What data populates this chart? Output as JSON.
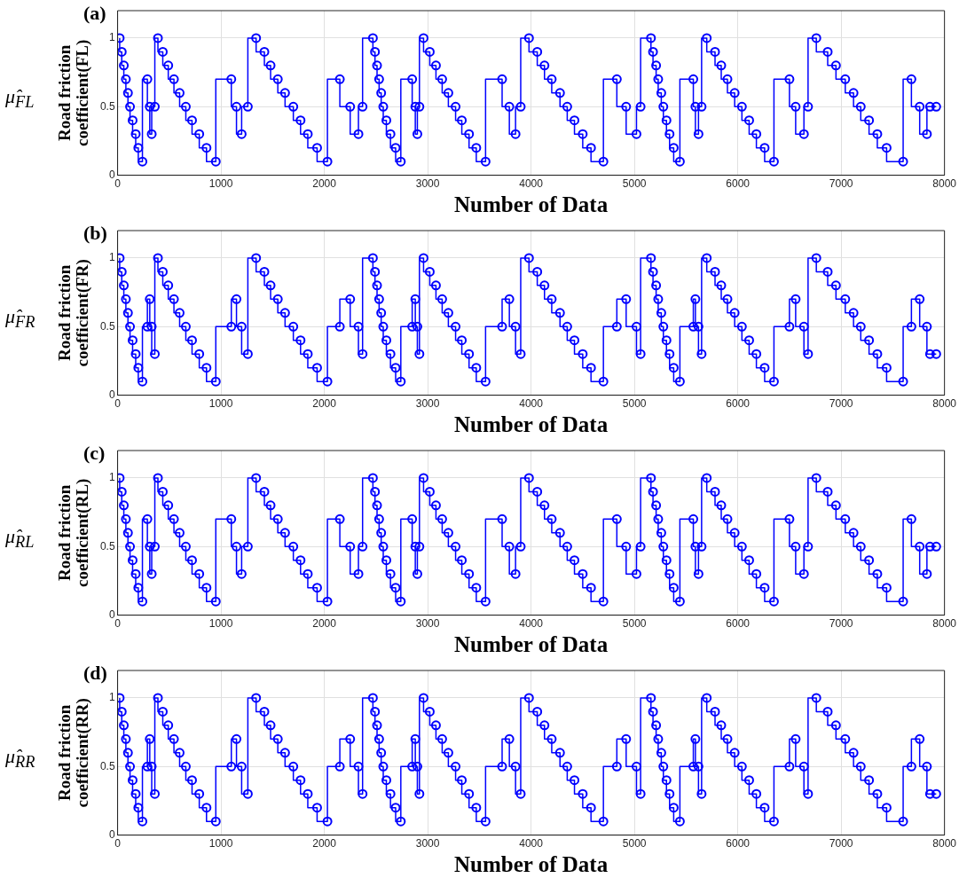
{
  "chart_data": [
    {
      "type": "step",
      "title": "(a)",
      "xlabel": "Number of Data",
      "ylabel": "Road friction coefficient(FL)",
      "annotations": [
        "μ̂$_{FL}$"
      ],
      "xlim": [
        0,
        8000
      ],
      "xticks": [
        0,
        1000,
        2000,
        3000,
        4000,
        5000,
        6000,
        7000,
        8000
      ],
      "ylim": [
        0,
        1.2
      ],
      "yticks": [
        0,
        0.5,
        1
      ],
      "grid": true,
      "legend": false,
      "marker": "circle",
      "line_style": "solid",
      "series": [
        {
          "color": "#0000ff",
          "x": [
            20,
            40,
            60,
            80,
            100,
            120,
            145,
            175,
            200,
            240,
            288,
            311,
            330,
            360,
            390,
            437,
            490,
            545,
            600,
            660,
            720,
            790,
            860,
            950,
            1100,
            1150,
            1200,
            1260,
            1340,
            1420,
            1480,
            1550,
            1620,
            1700,
            1770,
            1840,
            1930,
            2030,
            2150,
            2250,
            2330,
            2370,
            2470,
            2490,
            2510,
            2530,
            2550,
            2570,
            2600,
            2640,
            2690,
            2740,
            2850,
            2880,
            2900,
            2920,
            2960,
            3020,
            3080,
            3140,
            3200,
            3270,
            3330,
            3400,
            3470,
            3560,
            3720,
            3790,
            3850,
            3900,
            3980,
            4060,
            4130,
            4200,
            4280,
            4350,
            4420,
            4500,
            4580,
            4700,
            4830,
            4920,
            5020,
            5060,
            5160,
            5180,
            5210,
            5230,
            5260,
            5280,
            5310,
            5340,
            5380,
            5440,
            5570,
            5590,
            5620,
            5650,
            5700,
            5780,
            5840,
            5900,
            5970,
            6040,
            6110,
            6180,
            6260,
            6350,
            6500,
            6560,
            6640,
            6680,
            6760,
            6870,
            6950,
            7040,
            7120,
            7190,
            7270,
            7350,
            7440,
            7600,
            7680,
            7760,
            7830,
            7860,
            7920
          ],
          "values": [
            1,
            0.9,
            0.8,
            0.7,
            0.6,
            0.5,
            0.4,
            0.3,
            0.2,
            0.1,
            0.7,
            0.5,
            0.3,
            0.5,
            1,
            0.9,
            0.8,
            0.7,
            0.6,
            0.5,
            0.4,
            0.3,
            0.2,
            0.1,
            0.7,
            0.5,
            0.3,
            0.5,
            1,
            0.9,
            0.8,
            0.7,
            0.6,
            0.5,
            0.4,
            0.3,
            0.2,
            0.1,
            0.7,
            0.5,
            0.3,
            0.5,
            1,
            0.9,
            0.8,
            0.7,
            0.6,
            0.5,
            0.4,
            0.3,
            0.2,
            0.1,
            0.7,
            0.5,
            0.3,
            0.5,
            1,
            0.9,
            0.8,
            0.7,
            0.6,
            0.5,
            0.4,
            0.3,
            0.2,
            0.1,
            0.7,
            0.5,
            0.3,
            0.5,
            1,
            0.9,
            0.8,
            0.7,
            0.6,
            0.5,
            0.4,
            0.3,
            0.2,
            0.1,
            0.7,
            0.5,
            0.3,
            0.5,
            1,
            0.9,
            0.8,
            0.7,
            0.6,
            0.5,
            0.4,
            0.3,
            0.2,
            0.1,
            0.7,
            0.5,
            0.3,
            0.5,
            1,
            0.9,
            0.8,
            0.7,
            0.6,
            0.5,
            0.4,
            0.3,
            0.2,
            0.1,
            0.7,
            0.5,
            0.3,
            0.5,
            1,
            0.9,
            0.8,
            0.7,
            0.6,
            0.5,
            0.4,
            0.3,
            0.2,
            0.1,
            0.7,
            0.5,
            0.3,
            0.5,
            0.5
          ]
        }
      ]
    },
    {
      "type": "step",
      "title": "(b)",
      "xlabel": "Number of Data",
      "ylabel": "Road friction coefficient(FR)",
      "annotations": [
        "μ̂$_{FR}$"
      ],
      "xlim": [
        0,
        8000
      ],
      "xticks": [
        0,
        1000,
        2000,
        3000,
        4000,
        5000,
        6000,
        7000,
        8000
      ],
      "ylim": [
        0,
        1.2
      ],
      "yticks": [
        0,
        0.5,
        1
      ],
      "grid": true,
      "legend": false,
      "marker": "circle",
      "line_style": "solid",
      "series": [
        {
          "color": "#0000ff",
          "x": [
            20,
            40,
            60,
            80,
            100,
            120,
            145,
            175,
            200,
            240,
            288,
            311,
            330,
            360,
            390,
            437,
            490,
            545,
            600,
            660,
            720,
            790,
            860,
            950,
            1100,
            1150,
            1200,
            1260,
            1340,
            1420,
            1480,
            1550,
            1620,
            1700,
            1770,
            1840,
            1930,
            2030,
            2150,
            2250,
            2330,
            2370,
            2470,
            2490,
            2510,
            2530,
            2550,
            2570,
            2600,
            2640,
            2690,
            2740,
            2850,
            2880,
            2900,
            2920,
            2960,
            3020,
            3080,
            3140,
            3200,
            3270,
            3330,
            3400,
            3470,
            3560,
            3720,
            3790,
            3850,
            3900,
            3980,
            4060,
            4130,
            4200,
            4280,
            4350,
            4420,
            4500,
            4580,
            4700,
            4830,
            4920,
            5020,
            5060,
            5160,
            5180,
            5210,
            5230,
            5260,
            5280,
            5310,
            5340,
            5380,
            5440,
            5570,
            5590,
            5620,
            5650,
            5700,
            5780,
            5840,
            5900,
            5970,
            6040,
            6110,
            6180,
            6260,
            6350,
            6500,
            6560,
            6640,
            6680,
            6760,
            6870,
            6950,
            7040,
            7120,
            7190,
            7270,
            7350,
            7440,
            7600,
            7680,
            7760,
            7830,
            7860,
            7920
          ],
          "values": [
            1,
            0.9,
            0.8,
            0.7,
            0.6,
            0.5,
            0.4,
            0.3,
            0.2,
            0.1,
            0.5,
            0.7,
            0.5,
            0.3,
            1,
            0.9,
            0.8,
            0.7,
            0.6,
            0.5,
            0.4,
            0.3,
            0.2,
            0.1,
            0.5,
            0.7,
            0.5,
            0.3,
            1,
            0.9,
            0.8,
            0.7,
            0.6,
            0.5,
            0.4,
            0.3,
            0.2,
            0.1,
            0.5,
            0.7,
            0.5,
            0.3,
            1,
            0.9,
            0.8,
            0.7,
            0.6,
            0.5,
            0.4,
            0.3,
            0.2,
            0.1,
            0.5,
            0.7,
            0.5,
            0.3,
            1,
            0.9,
            0.8,
            0.7,
            0.6,
            0.5,
            0.4,
            0.3,
            0.2,
            0.1,
            0.5,
            0.7,
            0.5,
            0.3,
            1,
            0.9,
            0.8,
            0.7,
            0.6,
            0.5,
            0.4,
            0.3,
            0.2,
            0.1,
            0.5,
            0.7,
            0.5,
            0.3,
            1,
            0.9,
            0.8,
            0.7,
            0.6,
            0.5,
            0.4,
            0.3,
            0.2,
            0.1,
            0.5,
            0.7,
            0.5,
            0.3,
            1,
            0.9,
            0.8,
            0.7,
            0.6,
            0.5,
            0.4,
            0.3,
            0.2,
            0.1,
            0.5,
            0.7,
            0.5,
            0.3,
            1,
            0.9,
            0.8,
            0.7,
            0.6,
            0.5,
            0.4,
            0.3,
            0.2,
            0.1,
            0.5,
            0.7,
            0.5,
            0.3,
            0.3
          ]
        }
      ]
    },
    {
      "type": "step",
      "title": "(c)",
      "xlabel": "Number of Data",
      "ylabel": "Road friction coefficient(RL)",
      "annotations": [
        "μ̂$_{RL}$"
      ],
      "xlim": [
        0,
        8000
      ],
      "xticks": [
        0,
        1000,
        2000,
        3000,
        4000,
        5000,
        6000,
        7000,
        8000
      ],
      "ylim": [
        0,
        1.2
      ],
      "yticks": [
        0,
        0.5,
        1
      ],
      "grid": true,
      "legend": false,
      "marker": "circle",
      "line_style": "solid",
      "series": [
        {
          "color": "#0000ff",
          "x": [
            20,
            40,
            60,
            80,
            100,
            120,
            145,
            175,
            200,
            240,
            288,
            311,
            330,
            360,
            390,
            437,
            490,
            545,
            600,
            660,
            720,
            790,
            860,
            950,
            1100,
            1150,
            1200,
            1260,
            1340,
            1420,
            1480,
            1550,
            1620,
            1700,
            1770,
            1840,
            1930,
            2030,
            2150,
            2250,
            2330,
            2370,
            2470,
            2490,
            2510,
            2530,
            2550,
            2570,
            2600,
            2640,
            2690,
            2740,
            2850,
            2880,
            2900,
            2920,
            2960,
            3020,
            3080,
            3140,
            3200,
            3270,
            3330,
            3400,
            3470,
            3560,
            3720,
            3790,
            3850,
            3900,
            3980,
            4060,
            4130,
            4200,
            4280,
            4350,
            4420,
            4500,
            4580,
            4700,
            4830,
            4920,
            5020,
            5060,
            5160,
            5180,
            5210,
            5230,
            5260,
            5280,
            5310,
            5340,
            5380,
            5440,
            5570,
            5590,
            5620,
            5650,
            5700,
            5780,
            5840,
            5900,
            5970,
            6040,
            6110,
            6180,
            6260,
            6350,
            6500,
            6560,
            6640,
            6680,
            6760,
            6870,
            6950,
            7040,
            7120,
            7190,
            7270,
            7350,
            7440,
            7600,
            7680,
            7760,
            7830,
            7860,
            7920
          ],
          "values": [
            1,
            0.9,
            0.8,
            0.7,
            0.6,
            0.5,
            0.4,
            0.3,
            0.2,
            0.1,
            0.7,
            0.5,
            0.3,
            0.5,
            1,
            0.9,
            0.8,
            0.7,
            0.6,
            0.5,
            0.4,
            0.3,
            0.2,
            0.1,
            0.7,
            0.5,
            0.3,
            0.5,
            1,
            0.9,
            0.8,
            0.7,
            0.6,
            0.5,
            0.4,
            0.3,
            0.2,
            0.1,
            0.7,
            0.5,
            0.3,
            0.5,
            1,
            0.9,
            0.8,
            0.7,
            0.6,
            0.5,
            0.4,
            0.3,
            0.2,
            0.1,
            0.7,
            0.5,
            0.3,
            0.5,
            1,
            0.9,
            0.8,
            0.7,
            0.6,
            0.5,
            0.4,
            0.3,
            0.2,
            0.1,
            0.7,
            0.5,
            0.3,
            0.5,
            1,
            0.9,
            0.8,
            0.7,
            0.6,
            0.5,
            0.4,
            0.3,
            0.2,
            0.1,
            0.7,
            0.5,
            0.3,
            0.5,
            1,
            0.9,
            0.8,
            0.7,
            0.6,
            0.5,
            0.4,
            0.3,
            0.2,
            0.1,
            0.7,
            0.5,
            0.3,
            0.5,
            1,
            0.9,
            0.8,
            0.7,
            0.6,
            0.5,
            0.4,
            0.3,
            0.2,
            0.1,
            0.7,
            0.5,
            0.3,
            0.5,
            1,
            0.9,
            0.8,
            0.7,
            0.6,
            0.5,
            0.4,
            0.3,
            0.2,
            0.1,
            0.7,
            0.5,
            0.3,
            0.5,
            0.5
          ]
        }
      ]
    },
    {
      "type": "step",
      "title": "(d)",
      "xlabel": "Number of Data",
      "ylabel": "Road friction coefficient(RR)",
      "annotations": [
        "μ̂$_{RR}$"
      ],
      "xlim": [
        0,
        8000
      ],
      "xticks": [
        0,
        1000,
        2000,
        3000,
        4000,
        5000,
        6000,
        7000,
        8000
      ],
      "ylim": [
        0,
        1.2
      ],
      "yticks": [
        0,
        0.5,
        1
      ],
      "grid": true,
      "legend": false,
      "marker": "circle",
      "line_style": "solid",
      "series": [
        {
          "color": "#0000ff",
          "x": [
            20,
            40,
            60,
            80,
            100,
            120,
            145,
            175,
            200,
            240,
            288,
            311,
            330,
            360,
            390,
            437,
            490,
            545,
            600,
            660,
            720,
            790,
            860,
            950,
            1100,
            1150,
            1200,
            1260,
            1340,
            1420,
            1480,
            1550,
            1620,
            1700,
            1770,
            1840,
            1930,
            2030,
            2150,
            2250,
            2330,
            2370,
            2470,
            2490,
            2510,
            2530,
            2550,
            2570,
            2600,
            2640,
            2690,
            2740,
            2850,
            2880,
            2900,
            2920,
            2960,
            3020,
            3080,
            3140,
            3200,
            3270,
            3330,
            3400,
            3470,
            3560,
            3720,
            3790,
            3850,
            3900,
            3980,
            4060,
            4130,
            4200,
            4280,
            4350,
            4420,
            4500,
            4580,
            4700,
            4830,
            4920,
            5020,
            5060,
            5160,
            5180,
            5210,
            5230,
            5260,
            5280,
            5310,
            5340,
            5380,
            5440,
            5570,
            5590,
            5620,
            5650,
            5700,
            5780,
            5840,
            5900,
            5970,
            6040,
            6110,
            6180,
            6260,
            6350,
            6500,
            6560,
            6640,
            6680,
            6760,
            6870,
            6950,
            7040,
            7120,
            7190,
            7270,
            7350,
            7440,
            7600,
            7680,
            7760,
            7830,
            7860,
            7920
          ],
          "values": [
            1,
            0.9,
            0.8,
            0.7,
            0.6,
            0.5,
            0.4,
            0.3,
            0.2,
            0.1,
            0.5,
            0.7,
            0.5,
            0.3,
            1,
            0.9,
            0.8,
            0.7,
            0.6,
            0.5,
            0.4,
            0.3,
            0.2,
            0.1,
            0.5,
            0.7,
            0.5,
            0.3,
            1,
            0.9,
            0.8,
            0.7,
            0.6,
            0.5,
            0.4,
            0.3,
            0.2,
            0.1,
            0.5,
            0.7,
            0.5,
            0.3,
            1,
            0.9,
            0.8,
            0.7,
            0.6,
            0.5,
            0.4,
            0.3,
            0.2,
            0.1,
            0.5,
            0.7,
            0.5,
            0.3,
            1,
            0.9,
            0.8,
            0.7,
            0.6,
            0.5,
            0.4,
            0.3,
            0.2,
            0.1,
            0.5,
            0.7,
            0.5,
            0.3,
            1,
            0.9,
            0.8,
            0.7,
            0.6,
            0.5,
            0.4,
            0.3,
            0.2,
            0.1,
            0.5,
            0.7,
            0.5,
            0.3,
            1,
            0.9,
            0.8,
            0.7,
            0.6,
            0.5,
            0.4,
            0.3,
            0.2,
            0.1,
            0.5,
            0.7,
            0.5,
            0.3,
            1,
            0.9,
            0.8,
            0.7,
            0.6,
            0.5,
            0.4,
            0.3,
            0.2,
            0.1,
            0.5,
            0.7,
            0.5,
            0.3,
            1,
            0.9,
            0.8,
            0.7,
            0.6,
            0.5,
            0.4,
            0.3,
            0.2,
            0.1,
            0.5,
            0.7,
            0.5,
            0.3,
            0.3
          ]
        }
      ]
    }
  ]
}
